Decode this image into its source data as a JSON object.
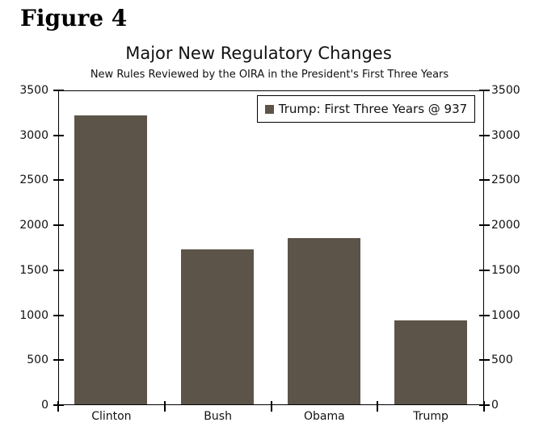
{
  "figure_label": "Figure 4",
  "chart_data": {
    "type": "bar",
    "title": "Major New Regulatory Changes",
    "subtitle": "New Rules Reviewed by the OIRA in the President's First Three Years",
    "categories": [
      "Clinton",
      "Bush",
      "Obama",
      "Trump"
    ],
    "values": [
      3240,
      1735,
      1860,
      937
    ],
    "ylim": [
      0,
      3500
    ],
    "ytick_step": 500,
    "ytick_labels": [
      "0",
      "500",
      "1000",
      "1500",
      "2000",
      "2500",
      "3000",
      "3500"
    ],
    "y_axis_sides": "both",
    "grid": false,
    "legend": {
      "label": "Trump: First Three Years @ 937",
      "position": "top-right"
    },
    "bar_color": "#5d5449",
    "axis_color": "#000000",
    "background_color": "#ffffff"
  }
}
